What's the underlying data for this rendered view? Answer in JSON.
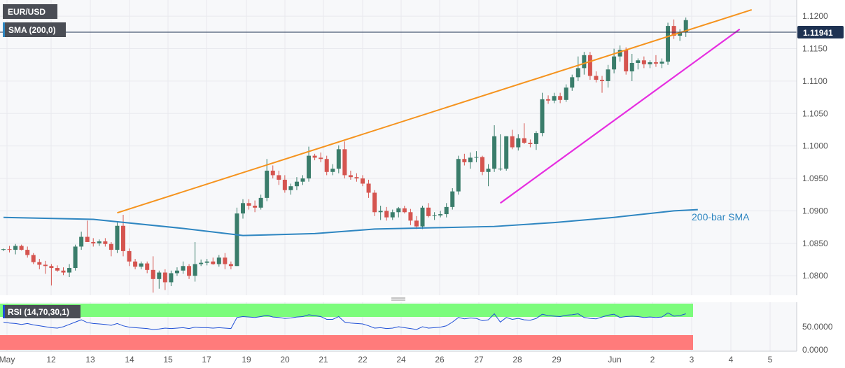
{
  "header": {
    "symbol": "EUR/USD",
    "indicator": "SMA (200,0)"
  },
  "colors": {
    "bull": "#3a7d6b",
    "bear": "#d5544f",
    "sma": "#2e86c1",
    "upper_line": "#f5931e",
    "lower_line": "#e62ee0",
    "rsi_line": "#1f4fd6",
    "rsi_over": "#7cfc7c",
    "rsi_under": "#ff7b7b",
    "price_tag": "#1e3252",
    "grid": "#e8e9ee"
  },
  "chart_data": {
    "type": "candlestick",
    "y_ticks": [
      "1.0800",
      "1.0850",
      "1.0900",
      "1.0950",
      "1.1000",
      "1.1050",
      "1.1100",
      "1.1150",
      "1.1200"
    ],
    "ylim": [
      1.077,
      1.1225
    ],
    "x_ticks": [
      "May",
      "12",
      "13",
      "14",
      "15",
      "17",
      "19",
      "20",
      "21",
      "22",
      "24",
      "26",
      "27",
      "28",
      "29",
      "Jun",
      "2",
      "3",
      "4",
      "5"
    ],
    "current_price": "1.11941",
    "candles": [
      [
        1.084,
        1.0842,
        1.0838,
        1.0841
      ],
      [
        1.0841,
        1.0846,
        1.0836,
        1.084
      ],
      [
        1.084,
        1.0849,
        1.0833,
        1.0846
      ],
      [
        1.0846,
        1.0848,
        1.0839,
        1.084
      ],
      [
        1.084,
        1.0845,
        1.0828,
        1.0832
      ],
      [
        1.0832,
        1.0835,
        1.0818,
        1.0821
      ],
      [
        1.0821,
        1.0826,
        1.081,
        1.0817
      ],
      [
        1.0817,
        1.0823,
        1.0803,
        1.0815
      ],
      [
        1.0815,
        1.0818,
        1.0785,
        1.0812
      ],
      [
        1.0812,
        1.0816,
        1.0806,
        1.0808
      ],
      [
        1.0808,
        1.0813,
        1.0801,
        1.0805
      ],
      [
        1.0805,
        1.0818,
        1.0798,
        1.0812
      ],
      [
        1.0812,
        1.0848,
        1.0808,
        1.0845
      ],
      [
        1.0845,
        1.0868,
        1.084,
        1.086
      ],
      [
        1.086,
        1.0885,
        1.0852,
        1.0852
      ],
      [
        1.0852,
        1.0858,
        1.0845,
        1.085
      ],
      [
        1.085,
        1.0856,
        1.0846,
        1.0853
      ],
      [
        1.0853,
        1.0858,
        1.0845,
        1.0849
      ],
      [
        1.0849,
        1.0852,
        1.083,
        1.084
      ],
      [
        1.084,
        1.0882,
        1.0835,
        1.0877
      ],
      [
        1.0877,
        1.0894,
        1.083,
        1.0838
      ],
      [
        1.0838,
        1.0842,
        1.0815,
        1.0822
      ],
      [
        1.0822,
        1.0826,
        1.081,
        1.0814
      ],
      [
        1.0814,
        1.0822,
        1.081,
        1.0819
      ],
      [
        1.0819,
        1.0822,
        1.0804,
        1.0809
      ],
      [
        1.0809,
        1.083,
        1.0774,
        1.0795
      ],
      [
        1.0795,
        1.0808,
        1.078,
        1.0805
      ],
      [
        1.0805,
        1.081,
        1.0778,
        1.079
      ],
      [
        1.079,
        1.0808,
        1.0784,
        1.0804
      ],
      [
        1.0804,
        1.0813,
        1.08,
        1.0808
      ],
      [
        1.0808,
        1.0822,
        1.0803,
        1.0815
      ],
      [
        1.0815,
        1.0818,
        1.0795,
        1.08
      ],
      [
        1.08,
        1.0852,
        1.0791,
        1.0818
      ],
      [
        1.0818,
        1.0825,
        1.0815,
        1.082
      ],
      [
        1.082,
        1.0826,
        1.0816,
        1.0822
      ],
      [
        1.0822,
        1.0828,
        1.0817,
        1.0818
      ],
      [
        1.0818,
        1.0832,
        1.0814,
        1.0828
      ],
      [
        1.0828,
        1.0835,
        1.081,
        1.0818
      ],
      [
        1.0818,
        1.0822,
        1.081,
        1.0815
      ],
      [
        1.0815,
        1.0905,
        1.0815,
        1.0896
      ],
      [
        1.0896,
        1.0918,
        1.0888,
        1.0912
      ],
      [
        1.0912,
        1.0918,
        1.0902,
        1.0908
      ],
      [
        1.0908,
        1.0916,
        1.0898,
        1.0905
      ],
      [
        1.0905,
        1.0925,
        1.0902,
        1.092
      ],
      [
        1.092,
        1.098,
        1.0915,
        1.0962
      ],
      [
        1.0962,
        1.097,
        1.095,
        1.0955
      ],
      [
        1.0955,
        1.0962,
        1.094,
        1.0948
      ],
      [
        1.0948,
        1.0955,
        1.0928,
        1.0932
      ],
      [
        1.0932,
        1.0942,
        1.0925,
        1.0938
      ],
      [
        1.0938,
        1.0952,
        1.0932,
        1.0945
      ],
      [
        1.0945,
        1.0955,
        1.094,
        1.095
      ],
      [
        1.095,
        1.0999,
        1.0945,
        1.0985
      ],
      [
        1.0985,
        1.0988,
        1.0978,
        1.0982
      ],
      [
        1.0982,
        1.099,
        1.0975,
        1.098
      ],
      [
        1.098,
        1.0985,
        1.0955,
        1.096
      ],
      [
        1.096,
        1.0972,
        1.0955,
        1.0965
      ],
      [
        1.0965,
        1.1001,
        1.0958,
        1.0995
      ],
      [
        1.0995,
        1.1007,
        1.095,
        1.0955
      ],
      [
        1.0955,
        1.0962,
        1.0948,
        1.0952
      ],
      [
        1.0952,
        1.0958,
        1.0945,
        1.095
      ],
      [
        1.095,
        1.0955,
        1.0938,
        1.0942
      ],
      [
        1.0942,
        1.0948,
        1.092,
        1.0928
      ],
      [
        1.0928,
        1.0932,
        1.0892,
        1.0898
      ],
      [
        1.0898,
        1.0908,
        1.0886,
        1.09
      ],
      [
        1.09,
        1.0906,
        1.0885,
        1.089
      ],
      [
        1.089,
        1.0902,
        1.0886,
        1.0898
      ],
      [
        1.0898,
        1.0906,
        1.089,
        1.0904
      ],
      [
        1.0904,
        1.0908,
        1.0896,
        1.0898
      ],
      [
        1.0898,
        1.0903,
        1.0878,
        1.0885
      ],
      [
        1.0885,
        1.0892,
        1.0872,
        1.0876
      ],
      [
        1.0876,
        1.0908,
        1.0872,
        1.0905
      ],
      [
        1.0905,
        1.0912,
        1.089,
        1.0892
      ],
      [
        1.0892,
        1.0898,
        1.0886,
        1.0893
      ],
      [
        1.0893,
        1.09,
        1.089,
        1.0895
      ],
      [
        1.0895,
        1.0912,
        1.089,
        1.0906
      ],
      [
        1.0906,
        1.0935,
        1.0902,
        1.093
      ],
      [
        1.093,
        1.0985,
        1.0925,
        1.098
      ],
      [
        1.098,
        1.0988,
        1.097,
        1.0975
      ],
      [
        1.0975,
        1.099,
        1.0965,
        1.0982
      ],
      [
        1.0982,
        1.0992,
        1.0975,
        1.0983
      ],
      [
        1.0983,
        1.0985,
        1.0955,
        1.096
      ],
      [
        1.096,
        1.0972,
        1.0938,
        1.0965
      ],
      [
        1.0965,
        1.1032,
        1.096,
        1.1015
      ],
      [
        1.0965,
        1.1018,
        1.0962,
        1.0965
      ],
      [
        1.0965,
        1.1015,
        1.0962,
        1.1015
      ],
      [
        1.1015,
        1.1025,
        1.0995,
        1.0998
      ],
      [
        1.0998,
        1.1018,
        1.0993,
        1.1012
      ],
      [
        1.1012,
        1.1035,
        1.1003,
        1.1005
      ],
      [
        1.1005,
        1.101,
        1.0998,
        1.1003
      ],
      [
        1.1003,
        1.1023,
        1.0994,
        1.102
      ],
      [
        1.102,
        1.1082,
        1.1015,
        1.1072
      ],
      [
        1.1072,
        1.1078,
        1.1065,
        1.107
      ],
      [
        1.107,
        1.1082,
        1.1066,
        1.1077
      ],
      [
        1.1077,
        1.1082,
        1.1066,
        1.1071
      ],
      [
        1.1071,
        1.1095,
        1.1068,
        1.109
      ],
      [
        1.109,
        1.111,
        1.1085,
        1.1106
      ],
      [
        1.1106,
        1.1138,
        1.11,
        1.112
      ],
      [
        1.112,
        1.1145,
        1.111,
        1.114
      ],
      [
        1.114,
        1.1145,
        1.1102,
        1.1108
      ],
      [
        1.1108,
        1.1115,
        1.1098,
        1.1102
      ],
      [
        1.1102,
        1.1108,
        1.1082,
        1.11
      ],
      [
        1.11,
        1.1125,
        1.109,
        1.1118
      ],
      [
        1.1118,
        1.115,
        1.1112,
        1.1138
      ],
      [
        1.1138,
        1.1155,
        1.113,
        1.1148
      ],
      [
        1.1148,
        1.1152,
        1.111,
        1.1115
      ],
      [
        1.1115,
        1.1142,
        1.11,
        1.1128
      ],
      [
        1.1128,
        1.1135,
        1.1118,
        1.1132
      ],
      [
        1.1132,
        1.1138,
        1.112,
        1.1126
      ],
      [
        1.1126,
        1.1132,
        1.112,
        1.1129
      ],
      [
        1.1129,
        1.114,
        1.1122,
        1.1127
      ],
      [
        1.1127,
        1.1135,
        1.112,
        1.113
      ],
      [
        1.113,
        1.119,
        1.1125,
        1.1185
      ],
      [
        1.1185,
        1.1195,
        1.1165,
        1.117
      ],
      [
        1.117,
        1.118,
        1.1162,
        1.1175
      ],
      [
        1.1175,
        1.1198,
        1.1168,
        1.1194
      ]
    ],
    "sma200": {
      "label": "200-bar SMA",
      "points": [
        [
          0,
          1.089
        ],
        [
          15,
          1.0887
        ],
        [
          30,
          1.0873
        ],
        [
          40,
          1.0862
        ],
        [
          52,
          1.0865
        ],
        [
          62,
          1.0872
        ],
        [
          72,
          1.0874
        ],
        [
          82,
          1.0876
        ],
        [
          92,
          1.0882
        ],
        [
          102,
          1.089
        ],
        [
          112,
          1.09
        ],
        [
          116,
          1.0902
        ]
      ]
    },
    "trendlines": {
      "upper": [
        [
          19,
          1.0897
        ],
        [
          125,
          1.121
        ]
      ],
      "lower": [
        [
          83,
          1.0912
        ],
        [
          123,
          1.118
        ]
      ]
    },
    "rsi": {
      "label": "RSI (14,70,30,1)",
      "y_ticks": [
        "50.0000",
        "0.0000"
      ],
      "values": [
        60,
        58,
        57,
        55,
        57,
        54,
        52,
        50,
        48,
        47,
        50,
        55,
        60,
        65,
        59,
        57,
        56,
        55,
        53,
        57,
        52,
        49,
        48,
        47,
        46,
        44,
        45,
        47,
        46,
        47,
        48,
        46,
        49,
        48,
        48,
        47,
        48,
        47,
        46,
        70,
        72,
        71,
        70,
        72,
        75,
        71,
        70,
        68,
        69,
        71,
        72,
        76,
        74,
        72,
        66,
        66,
        72,
        60,
        58,
        57,
        56,
        52,
        47,
        48,
        46,
        47,
        50,
        48,
        46,
        44,
        50,
        47,
        48,
        49,
        52,
        60,
        70,
        67,
        69,
        68,
        63,
        65,
        78,
        60,
        70,
        66,
        68,
        65,
        64,
        68,
        77,
        74,
        73,
        72,
        75,
        76,
        78,
        70,
        68,
        67,
        71,
        75,
        77,
        70,
        72,
        73,
        72,
        70,
        71,
        70,
        71,
        80,
        73,
        74,
        78
      ]
    }
  }
}
